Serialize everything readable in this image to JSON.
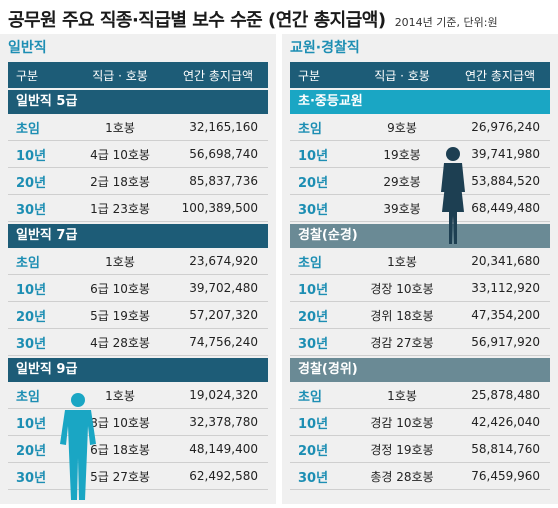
{
  "title": {
    "main": "공무원 주요 직종·직급별 보수 수준 (연간 총지급액)",
    "sub": "2014년 기준, 단위:원"
  },
  "columns": {
    "c1": "구분",
    "c2": "직급 · 호봉",
    "c3": "연간 총지급액"
  },
  "left": {
    "title": "일반직",
    "sections": [
      {
        "name": "일반직 5급",
        "rows": [
          {
            "label": "초임",
            "grade": "1호봉",
            "amount": "32,165,160"
          },
          {
            "label": "10년",
            "grade": "4급 10호봉",
            "amount": "56,698,740"
          },
          {
            "label": "20년",
            "grade": "2급 18호봉",
            "amount": "85,837,736"
          },
          {
            "label": "30년",
            "grade": "1급 23호봉",
            "amount": "100,389,500"
          }
        ]
      },
      {
        "name": "일반직 7급",
        "rows": [
          {
            "label": "초임",
            "grade": "1호봉",
            "amount": "23,674,920"
          },
          {
            "label": "10년",
            "grade": "6급 10호봉",
            "amount": "39,702,480"
          },
          {
            "label": "20년",
            "grade": "5급 19호봉",
            "amount": "57,207,320"
          },
          {
            "label": "30년",
            "grade": "4급 28호봉",
            "amount": "74,756,240"
          }
        ]
      },
      {
        "name": "일반직 9급",
        "rows": [
          {
            "label": "초임",
            "grade": "1호봉",
            "amount": "19,024,320"
          },
          {
            "label": "10년",
            "grade": "8급 10호봉",
            "amount": "32,378,780"
          },
          {
            "label": "20년",
            "grade": "6급 18호봉",
            "amount": "48,149,400"
          },
          {
            "label": "30년",
            "grade": "5급 27호봉",
            "amount": "62,492,580"
          }
        ]
      }
    ]
  },
  "right": {
    "title": "교원·경찰직",
    "sections": [
      {
        "name": "초·중등교원",
        "rows": [
          {
            "label": "초임",
            "grade": "9호봉",
            "amount": "26,976,240"
          },
          {
            "label": "10년",
            "grade": "19호봉",
            "amount": "39,741,980"
          },
          {
            "label": "20년",
            "grade": "29호봉",
            "amount": "53,884,520"
          },
          {
            "label": "30년",
            "grade": "39호봉",
            "amount": "68,449,480"
          }
        ]
      },
      {
        "name": "경찰(순경)",
        "rows": [
          {
            "label": "초임",
            "grade": "1호봉",
            "amount": "20,341,680"
          },
          {
            "label": "10년",
            "grade": "경장 10호봉",
            "amount": "33,112,920"
          },
          {
            "label": "20년",
            "grade": "경위 18호봉",
            "amount": "47,354,200"
          },
          {
            "label": "30년",
            "grade": "경감 27호봉",
            "amount": "56,917,920"
          }
        ]
      },
      {
        "name": "경찰(경위)",
        "rows": [
          {
            "label": "초임",
            "grade": "1호봉",
            "amount": "25,878,480"
          },
          {
            "label": "10년",
            "grade": "경감 10호봉",
            "amount": "42,426,040"
          },
          {
            "label": "20년",
            "grade": "경정 19호봉",
            "amount": "58,814,760"
          },
          {
            "label": "30년",
            "grade": "총경 28호봉",
            "amount": "76,459,960"
          }
        ]
      }
    ]
  },
  "colors": {
    "dark": "#1d5c77",
    "teal": "#1aa6c4",
    "grey": "#6a8a95",
    "accent": "#1d8eb3"
  }
}
